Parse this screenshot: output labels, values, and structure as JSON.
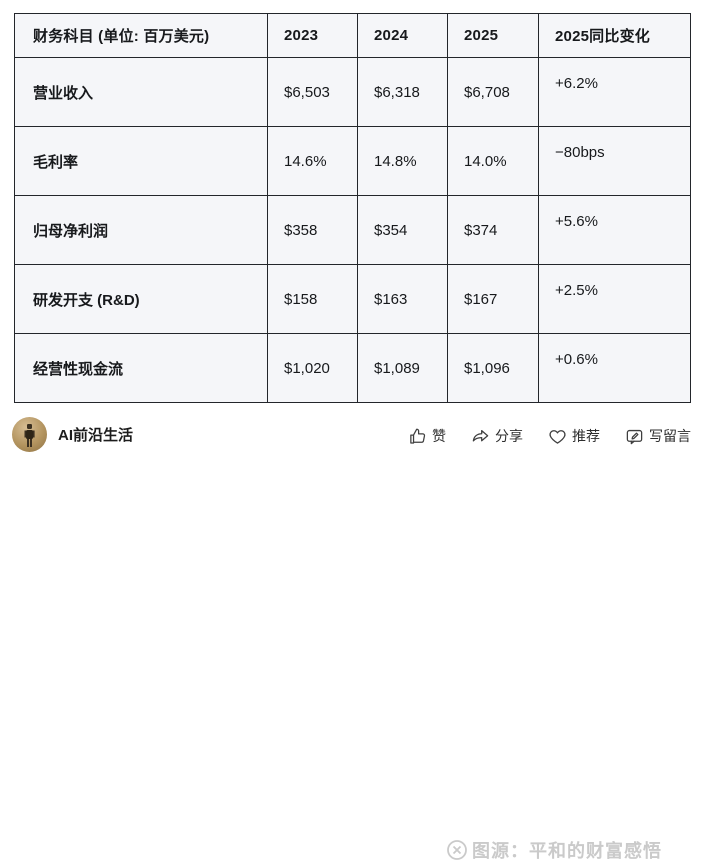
{
  "table": {
    "columns": [
      "财务科目 (单位: 百万美元)",
      "2023",
      "2024",
      "2025",
      "2025同比变化"
    ],
    "rows": [
      {
        "label": "营业收入",
        "y2023": "$6,503",
        "y2024": "$6,318",
        "y2025": "$6,708",
        "yoy": "+6.2%"
      },
      {
        "label": "毛利率",
        "y2023": "14.6%",
        "y2024": "14.8%",
        "y2025": "14.0%",
        "yoy": "−80bps"
      },
      {
        "label": "归母净利润",
        "y2023": "$358",
        "y2024": "$354",
        "y2025": "$374",
        "yoy": "+5.6%"
      },
      {
        "label": "研发开支 (R&D)",
        "y2023": "$158",
        "y2024": "$163",
        "y2025": "$167",
        "yoy": "+2.5%"
      },
      {
        "label": "经营性现金流",
        "y2023": "$1,020",
        "y2024": "$1,089",
        "y2025": "$1,096",
        "yoy": "+0.6%"
      }
    ]
  },
  "footer": {
    "author": "AI前沿生活",
    "actions": [
      {
        "name": "like",
        "icon": "thumbs-up-icon",
        "label": "赞"
      },
      {
        "name": "share",
        "icon": "share-arrow-icon",
        "label": "分享"
      },
      {
        "name": "recommend",
        "icon": "heart-icon",
        "label": "推荐"
      },
      {
        "name": "comment",
        "icon": "comment-bubble-icon",
        "label": "写留言"
      }
    ],
    "watermark": "图源：平和的财富感悟"
  },
  "colors": {
    "cell_background": "#f5f6f9",
    "table_border": "#23262b",
    "text": "#17191c",
    "watermark": "#b9b9b9",
    "avatar_tan": "#b3945f"
  }
}
